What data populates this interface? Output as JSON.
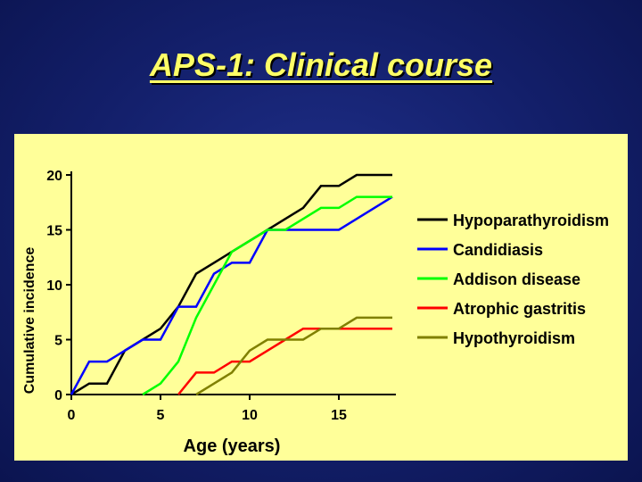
{
  "slide": {
    "title": "APS-1: Clinical course"
  },
  "colors": {
    "background": "#131f6a",
    "title": "#ffff66",
    "panel": "#ffff99"
  },
  "chart_data": {
    "type": "line",
    "title": "",
    "xlabel": "Age (years)",
    "ylabel": "Cumulative incidence",
    "xlim": [
      0,
      18
    ],
    "ylim": [
      0,
      20
    ],
    "xticks": [
      0,
      5,
      10,
      15
    ],
    "yticks": [
      0,
      5,
      10,
      15,
      20
    ],
    "grid": false,
    "legend_position": "right",
    "series": [
      {
        "name": "Hypoparathyroidism",
        "color": "#000000",
        "points": [
          [
            0,
            0
          ],
          [
            1,
            1
          ],
          [
            2,
            1
          ],
          [
            3,
            4
          ],
          [
            4,
            5
          ],
          [
            5,
            6
          ],
          [
            6,
            8
          ],
          [
            7,
            11
          ],
          [
            8,
            12
          ],
          [
            9,
            13
          ],
          [
            10,
            14
          ],
          [
            11,
            15
          ],
          [
            12,
            16
          ],
          [
            13,
            17
          ],
          [
            14,
            19
          ],
          [
            15,
            19
          ],
          [
            16,
            20
          ],
          [
            17,
            20
          ],
          [
            18,
            20
          ]
        ]
      },
      {
        "name": "Candidiasis",
        "color": "#0000ff",
        "points": [
          [
            0,
            0
          ],
          [
            1,
            3
          ],
          [
            2,
            3
          ],
          [
            3,
            4
          ],
          [
            4,
            5
          ],
          [
            5,
            5
          ],
          [
            6,
            8
          ],
          [
            7,
            8
          ],
          [
            8,
            11
          ],
          [
            9,
            12
          ],
          [
            10,
            12
          ],
          [
            11,
            15
          ],
          [
            12,
            15
          ],
          [
            13,
            15
          ],
          [
            14,
            15
          ],
          [
            15,
            15
          ],
          [
            18,
            18
          ]
        ]
      },
      {
        "name": "Addison disease",
        "color": "#00ff00",
        "points": [
          [
            4,
            0
          ],
          [
            5,
            1
          ],
          [
            6,
            3
          ],
          [
            7,
            7
          ],
          [
            8,
            10
          ],
          [
            9,
            13
          ],
          [
            10,
            14
          ],
          [
            11,
            15
          ],
          [
            12,
            15
          ],
          [
            13,
            16
          ],
          [
            14,
            17
          ],
          [
            15,
            17
          ],
          [
            16,
            18
          ],
          [
            17,
            18
          ],
          [
            18,
            18
          ]
        ]
      },
      {
        "name": "Atrophic gastritis",
        "color": "#ff0000",
        "points": [
          [
            6,
            0
          ],
          [
            7,
            2
          ],
          [
            8,
            2
          ],
          [
            9,
            3
          ],
          [
            10,
            3
          ],
          [
            11,
            4
          ],
          [
            12,
            5
          ],
          [
            13,
            6
          ],
          [
            14,
            6
          ],
          [
            15,
            6
          ],
          [
            16,
            6
          ],
          [
            17,
            6
          ],
          [
            18,
            6
          ]
        ]
      },
      {
        "name": "Hypothyroidism",
        "color": "#808000",
        "points": [
          [
            7,
            0
          ],
          [
            8,
            1
          ],
          [
            9,
            2
          ],
          [
            10,
            4
          ],
          [
            11,
            5
          ],
          [
            12,
            5
          ],
          [
            13,
            5
          ],
          [
            14,
            6
          ],
          [
            15,
            6
          ],
          [
            16,
            7
          ],
          [
            17,
            7
          ],
          [
            18,
            7
          ]
        ]
      }
    ]
  }
}
